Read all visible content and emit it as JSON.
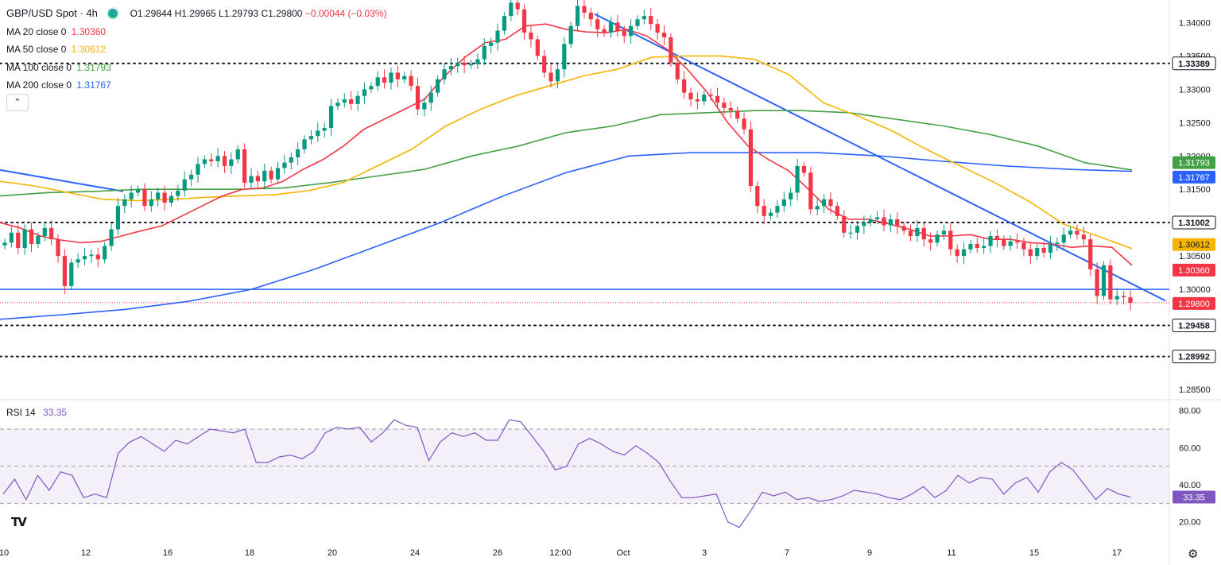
{
  "header": {
    "title": "GBP/USD Spot · 4h",
    "ohlc": {
      "o": "O1.29844",
      "h": "H1.29965",
      "l": "L1.29793",
      "c": "C1.29800",
      "chg": "−0.00044 (−0.03%)"
    },
    "collapse_icon": "chevron-up-icon"
  },
  "indicators": [
    {
      "label": "MA 20 close 0",
      "value": "1.30360",
      "color": "#f23645"
    },
    {
      "label": "MA 50 close 0",
      "value": "1.30612",
      "color": "#f5b400"
    },
    {
      "label": "MA 100 close 0",
      "value": "1.31793",
      "color": "#43a047"
    },
    {
      "label": "MA 200 close 0",
      "value": "1.31767",
      "color": "#2962ff"
    }
  ],
  "rsi_legend": {
    "label": "RSI 14",
    "value": "33.35",
    "color": "#7e57c2"
  },
  "chart_data": {
    "type": "candlestick",
    "symbol": "GBP/USD Spot",
    "timeframe": "4h",
    "price_axis": {
      "ticks": [
        "1.34000",
        "1.33500",
        "1.33000",
        "1.32500",
        "1.32000",
        "1.31500",
        "1.31000",
        "1.30500",
        "1.30000",
        "1.29500",
        "1.29000",
        "1.28500"
      ],
      "ylim": [
        1.2838,
        1.3428
      ]
    },
    "x_ticks": [
      "10",
      "12",
      "16",
      "18",
      "20",
      "24",
      "26",
      "12:00",
      "Oct",
      "3",
      "7",
      "9",
      "11",
      "15",
      "17"
    ],
    "horizontal_levels": [
      {
        "value": 1.33389,
        "label": "1.33389",
        "style": "dotted",
        "color": "#131722"
      },
      {
        "value": 1.31002,
        "label": "1.31002",
        "style": "dotted",
        "color": "#131722"
      },
      {
        "value": 1.29458,
        "label": "1.29458",
        "style": "dotted",
        "color": "#131722"
      },
      {
        "value": 1.28992,
        "label": "1.28992",
        "style": "dotted",
        "color": "#131722"
      },
      {
        "value": 1.3,
        "label": "",
        "style": "solid",
        "color": "#2962ff"
      },
      {
        "value": 1.298,
        "label": "1.29800",
        "style": "thin-dotted",
        "color": "#f23645"
      }
    ],
    "ma_badges": [
      {
        "value": 1.31793,
        "label": "1.31793",
        "color": "#43a047"
      },
      {
        "value": 1.31767,
        "label": "1.31767",
        "color": "#2962ff"
      },
      {
        "value": 1.30612,
        "label": "1.30612",
        "color": "#f5b400"
      },
      {
        "value": 1.3036,
        "label": "1.30360",
        "color": "#f23645"
      }
    ],
    "last_price": {
      "value": 1.298,
      "label": "1.29800",
      "color": "#f23645"
    },
    "trendlines": [
      {
        "points": [
          [
            0,
            1.3179
          ],
          [
            155,
            1.3147
          ]
        ],
        "color": "#2962ff"
      },
      {
        "points": [
          [
            748,
            1.3413
          ],
          [
            1466,
            1.2983
          ]
        ],
        "color": "#2962ff"
      }
    ],
    "closes": [
      1.307,
      1.3085,
      1.3062,
      1.309,
      1.3068,
      1.308,
      1.3092,
      1.3075,
      1.305,
      1.3005,
      1.304,
      1.3045,
      1.305,
      1.3052,
      1.3045,
      1.3065,
      1.309,
      1.3125,
      1.3135,
      1.3145,
      1.315,
      1.3125,
      1.3135,
      1.3145,
      1.313,
      1.314,
      1.3148,
      1.3165,
      1.3172,
      1.3188,
      1.3195,
      1.3192,
      1.32,
      1.3185,
      1.3195,
      1.321,
      1.316,
      1.317,
      1.3162,
      1.3178,
      1.3165,
      1.3182,
      1.319,
      1.3198,
      1.321,
      1.3225,
      1.323,
      1.3238,
      1.3242,
      1.3275,
      1.328,
      1.3285,
      1.3278,
      1.329,
      1.33,
      1.3305,
      1.3318,
      1.331,
      1.3325,
      1.3315,
      1.332,
      1.3305,
      1.327,
      1.328,
      1.3295,
      1.3315,
      1.333,
      1.3335,
      1.334,
      1.3336,
      1.3338,
      1.3345,
      1.3365,
      1.337,
      1.3388,
      1.341,
      1.343,
      1.342,
      1.3385,
      1.3375,
      1.335,
      1.3325,
      1.3312,
      1.333,
      1.3368,
      1.3395,
      1.3425,
      1.3415,
      1.3405,
      1.339,
      1.3385,
      1.34,
      1.3388,
      1.338,
      1.3395,
      1.3405,
      1.341,
      1.3398,
      1.3385,
      1.3378,
      1.334,
      1.3315,
      1.3295,
      1.3285,
      1.3282,
      1.3292,
      1.329,
      1.328,
      1.3272,
      1.3268,
      1.3256,
      1.324,
      1.3155,
      1.3125,
      1.311,
      1.3115,
      1.3125,
      1.3135,
      1.3145,
      1.3185,
      1.3175,
      1.312,
      1.3125,
      1.3135,
      1.3125,
      1.311,
      1.3085,
      1.3085,
      1.3095,
      1.31,
      1.3105,
      1.3108,
      1.3096,
      1.3105,
      1.3095,
      1.3088,
      1.308,
      1.3092,
      1.3075,
      1.307,
      1.3082,
      1.3088,
      1.306,
      1.305,
      1.306,
      1.3068,
      1.3062,
      1.3065,
      1.308,
      1.3075,
      1.3065,
      1.3072,
      1.307,
      1.306,
      1.305,
      1.3062,
      1.3055,
      1.3068,
      1.307,
      1.3082,
      1.3088,
      1.3082,
      1.3075,
      1.303,
      1.299,
      1.3036,
      1.2985,
      1.299,
      1.2988,
      1.298
    ],
    "ma20": [
      1.31,
      1.3092,
      1.308,
      1.3074,
      1.307,
      1.3072,
      1.308,
      1.3088,
      1.3095,
      1.311,
      1.3125,
      1.314,
      1.315,
      1.3152,
      1.3162,
      1.318,
      1.3195,
      1.3215,
      1.324,
      1.3255,
      1.327,
      1.3285,
      1.332,
      1.3348,
      1.337,
      1.3375,
      1.3395,
      1.3398,
      1.339,
      1.3386,
      1.3385,
      1.339,
      1.338,
      1.336,
      1.333,
      1.3295,
      1.325,
      1.3215,
      1.3195,
      1.3178,
      1.315,
      1.312,
      1.3105,
      1.3105,
      1.3098,
      1.309,
      1.308,
      1.308,
      1.3082,
      1.3075,
      1.3075,
      1.307,
      1.3068,
      1.3063,
      1.3065,
      1.3063,
      1.3036
    ],
    "ma50": [
      1.3162,
      1.3155,
      1.3145,
      1.3135,
      1.3133,
      1.3135,
      1.3138,
      1.314,
      1.3142,
      1.3148,
      1.316,
      1.3185,
      1.321,
      1.3245,
      1.327,
      1.329,
      1.3305,
      1.332,
      1.333,
      1.3348,
      1.335,
      1.335,
      1.3345,
      1.3322,
      1.328,
      1.326,
      1.3238,
      1.321,
      1.3185,
      1.316,
      1.3132,
      1.3098,
      1.308,
      1.3061
    ],
    "ma100": [
      1.314,
      1.3145,
      1.3147,
      1.315,
      1.315,
      1.315,
      1.3152,
      1.316,
      1.317,
      1.318,
      1.32,
      1.3215,
      1.3235,
      1.3245,
      1.3262,
      1.3265,
      1.3268,
      1.3268,
      1.3265,
      1.3255,
      1.3245,
      1.3232,
      1.3215,
      1.319,
      1.3179
    ],
    "ma200": [
      1.2955,
      1.2962,
      1.297,
      1.2982,
      1.3,
      1.303,
      1.3065,
      1.31,
      1.314,
      1.3175,
      1.32,
      1.3205,
      1.3205,
      1.3205,
      1.32,
      1.3192,
      1.3185,
      1.318,
      1.3177
    ],
    "rsi": {
      "name": "RSI 14",
      "ylim": [
        10,
        85
      ],
      "ticks": [
        "80.00",
        "60.00",
        "40.00",
        "20.00"
      ],
      "bands": [
        30,
        50,
        70
      ],
      "last": "33.35",
      "values": [
        35,
        43,
        32,
        45,
        37,
        47,
        45,
        33,
        35,
        33,
        57,
        63,
        66,
        62,
        58,
        64,
        62,
        66,
        70,
        69,
        68,
        70,
        52,
        52,
        55,
        56,
        54,
        58,
        68,
        71,
        70,
        71,
        63,
        68,
        75,
        72,
        71,
        53,
        63,
        68,
        66,
        68,
        64,
        64,
        75,
        74,
        66,
        58,
        48,
        50,
        62,
        65,
        62,
        58,
        56,
        61,
        57,
        52,
        42,
        33,
        33,
        34,
        35,
        20,
        17,
        26,
        36,
        34,
        36,
        32,
        33,
        31,
        32,
        34,
        37,
        36,
        35,
        33,
        32,
        35,
        39,
        33,
        37,
        45,
        41,
        44,
        43,
        35,
        41,
        44,
        36,
        47,
        52,
        48,
        40,
        32,
        38,
        35,
        33.35
      ]
    }
  }
}
